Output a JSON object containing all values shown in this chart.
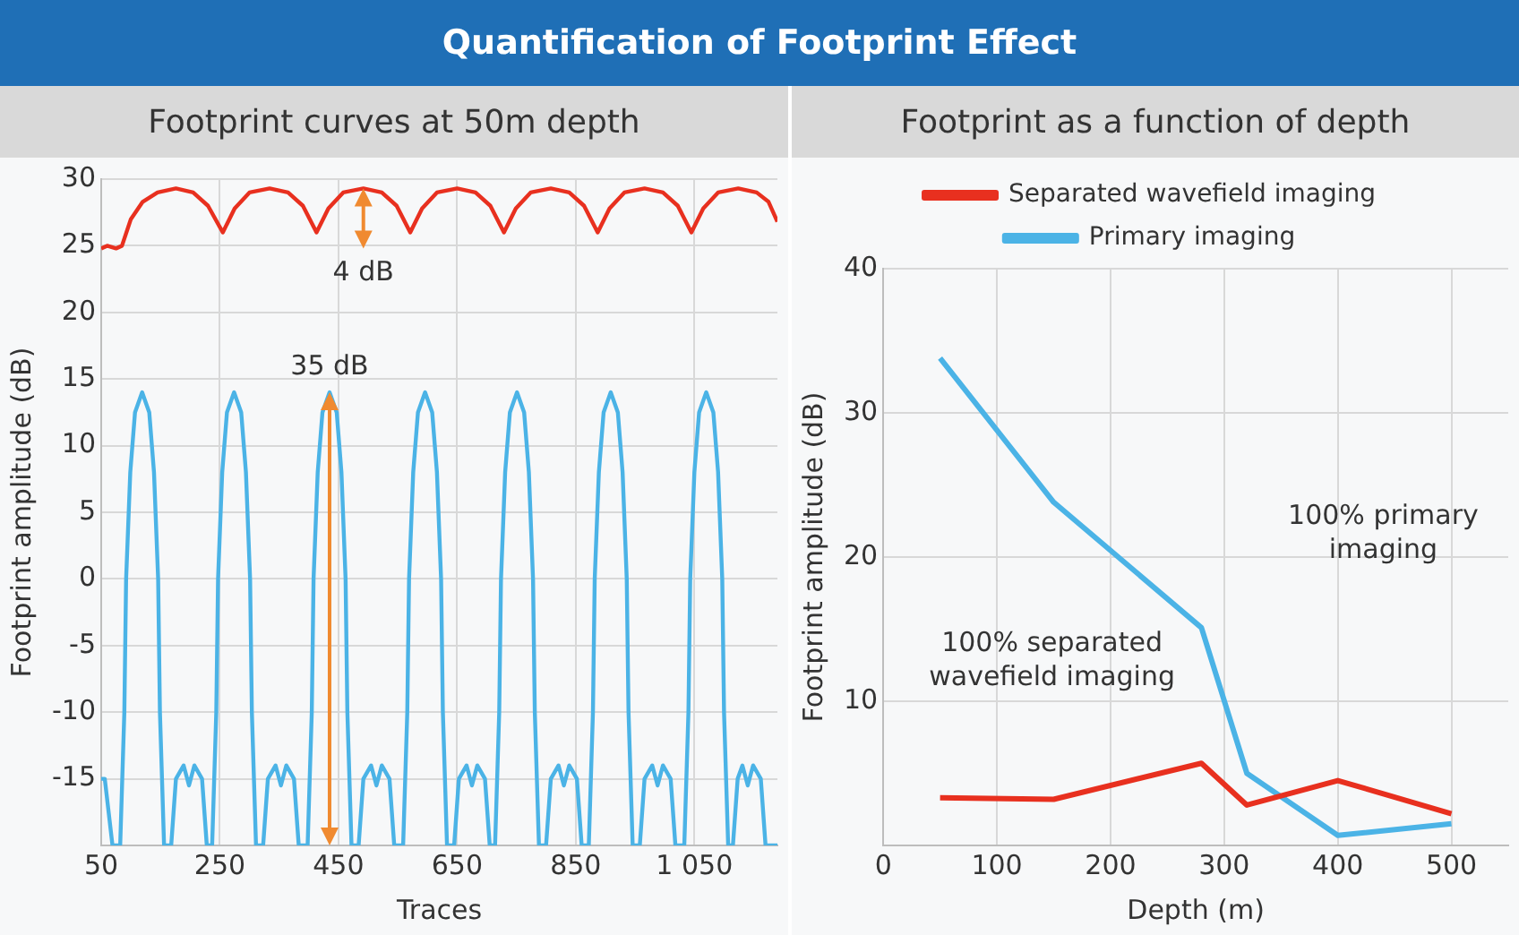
{
  "chart_data": [
    {
      "type": "line",
      "title": "Quantification of Footprint Effect",
      "subtitle": "Footprint curves at 50m depth",
      "xlabel": "Traces",
      "ylabel": "Footprint amplitude (dB)",
      "xlim": [
        50,
        1190
      ],
      "xticks": [
        50,
        250,
        450,
        650,
        850,
        {
          "value": 1050,
          "label": "1 050"
        }
      ],
      "ylim": [
        -20,
        30
      ],
      "yticks": [
        {
          "value": -20,
          "label": null
        },
        -15,
        -10,
        -5,
        0,
        5,
        10,
        15,
        20,
        25,
        30
      ],
      "grid": true,
      "legend": false,
      "series": [
        {
          "color": "#e8301f",
          "x": [
            50,
            60,
            75,
            85,
            100,
            120,
            145,
            176,
            205,
            230,
            255,
            275,
            300,
            334,
            365,
            390,
            413,
            433,
            458,
            492,
            523,
            548,
            571,
            591,
            616,
            650,
            681,
            706,
            729,
            749,
            774,
            808,
            839,
            864,
            887,
            907,
            932,
            966,
            997,
            1022,
            1045,
            1065,
            1090,
            1124,
            1155,
            1175,
            1190
          ],
          "values": [
            24.8,
            25,
            24.8,
            25,
            27,
            28.3,
            29,
            29.3,
            29,
            28,
            26,
            27.8,
            29,
            29.3,
            29,
            28,
            26,
            27.8,
            29,
            29.3,
            29,
            28,
            26,
            27.8,
            29,
            29.3,
            29,
            28,
            26,
            27.8,
            29,
            29.3,
            29,
            28,
            26,
            27.8,
            29,
            29.3,
            29,
            28,
            26,
            27.8,
            29,
            29.3,
            29,
            28.3,
            26.8
          ]
        },
        {
          "color": "#4bb3e6",
          "x": [
            50,
            56,
            69,
            82,
            89,
            92,
            99,
            107,
            119,
            131,
            139,
            146,
            149,
            156,
            168,
            176,
            189,
            198,
            207,
            220,
            228,
            237,
            244,
            247,
            254,
            262,
            274,
            286,
            294,
            301,
            304,
            311,
            323,
            331,
            344,
            353,
            362,
            375,
            383,
            398,
            405,
            408,
            415,
            423,
            435,
            447,
            455,
            462,
            465,
            472,
            484,
            492,
            505,
            514,
            523,
            536,
            544,
            559,
            566,
            569,
            576,
            584,
            596,
            608,
            616,
            623,
            626,
            633,
            645,
            653,
            666,
            675,
            684,
            697,
            705,
            714,
            721,
            724,
            731,
            739,
            751,
            763,
            771,
            778,
            781,
            788,
            800,
            808,
            821,
            830,
            839,
            852,
            860,
            872,
            879,
            882,
            889,
            897,
            909,
            921,
            929,
            936,
            939,
            946,
            958,
            966,
            979,
            988,
            997,
            1010,
            1018,
            1033,
            1040,
            1043,
            1050,
            1058,
            1070,
            1082,
            1090,
            1097,
            1100,
            1107,
            1115,
            1123,
            1131,
            1140,
            1149,
            1162,
            1170,
            1190
          ],
          "values": [
            -15,
            -15,
            -20,
            -20,
            -10,
            0,
            8,
            12.5,
            14,
            12.5,
            8,
            0,
            -10,
            -20,
            -20,
            -15,
            -14,
            -15.5,
            -14,
            -15,
            -20,
            -20,
            -10,
            0,
            8,
            12.5,
            14,
            12.5,
            8,
            0,
            -10,
            -20,
            -20,
            -15,
            -14,
            -15.5,
            -14,
            -15,
            -20,
            -20,
            -10,
            0,
            8,
            12.5,
            14,
            12.5,
            8,
            0,
            -10,
            -20,
            -20,
            -15,
            -14,
            -15.5,
            -14,
            -15,
            -20,
            -20,
            -10,
            0,
            8,
            12.5,
            14,
            12.5,
            8,
            0,
            -10,
            -20,
            -20,
            -15,
            -14,
            -15.5,
            -14,
            -15,
            -20,
            -20,
            -10,
            0,
            8,
            12.5,
            14,
            12.5,
            8,
            0,
            -10,
            -20,
            -20,
            -15,
            -14,
            -15.5,
            -14,
            -15,
            -20,
            -20,
            -10,
            0,
            8,
            12.5,
            14,
            12.5,
            8,
            0,
            -10,
            -20,
            -20,
            -15,
            -14,
            -15.5,
            -14,
            -15,
            -20,
            -20,
            -10,
            0,
            8,
            12.5,
            14,
            12.5,
            8,
            0,
            -10,
            -20,
            -20,
            -15,
            -14,
            -15.5,
            -14,
            -15,
            -20,
            -20
          ]
        }
      ],
      "annotations": [
        {
          "text": "4 dB",
          "x": 492,
          "y": 29.3
        },
        {
          "text": "35 dB",
          "x": 435,
          "y": 14
        }
      ]
    },
    {
      "type": "line",
      "subtitle": "Footprint as a function of depth",
      "xlabel": "Depth (m)",
      "ylabel": "Footprint amplitude (dB)",
      "xlim": [
        0,
        550
      ],
      "xticks": [
        0,
        100,
        200,
        300,
        400,
        500
      ],
      "ylim": [
        0,
        40
      ],
      "yticks": [
        {
          "value": 0,
          "label": null
        },
        10,
        20,
        30,
        40
      ],
      "grid": true,
      "legend": "top",
      "x": [
        50,
        150,
        280,
        320,
        400,
        500
      ],
      "series": [
        {
          "name": "Separated wavefield imaging",
          "color": "#e8301f",
          "values": [
            3.3,
            3.2,
            5.7,
            2.8,
            4.5,
            2.2
          ]
        },
        {
          "name": "Primary imaging",
          "color": "#4bb3e6",
          "values": [
            33.8,
            23.8,
            15.1,
            5,
            0.7,
            1.5
          ]
        }
      ],
      "annotations": [
        "100% separated wavefield imaging",
        "100% primary imaging"
      ]
    }
  ]
}
